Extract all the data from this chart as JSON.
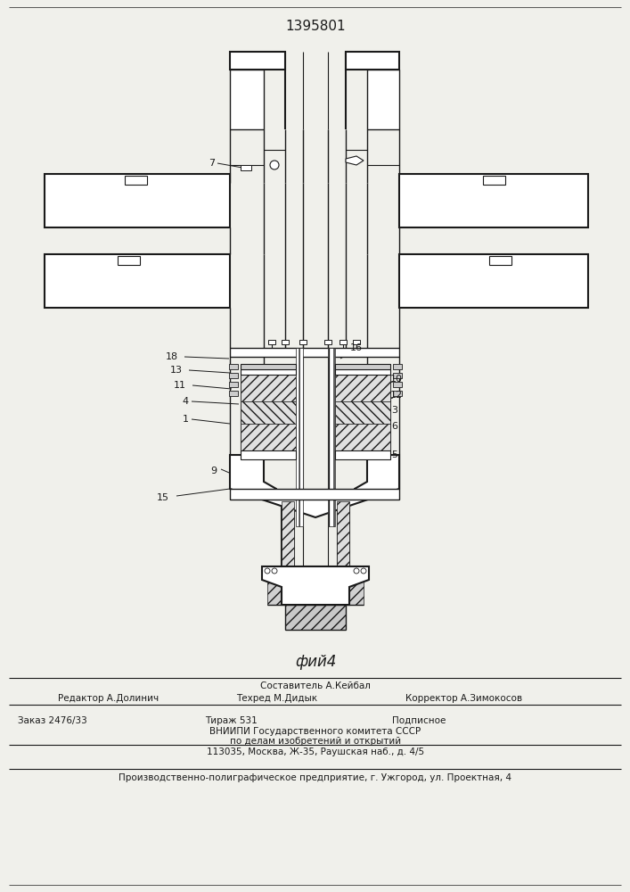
{
  "patent_number": "1395801",
  "fig_label": "фий4",
  "background_color": "#f0f0eb",
  "line_color": "#1a1a1a",
  "footer_editor": "Редактор А.Долинич",
  "footer_tech": "Техред М.Дидык",
  "footer_corrector": "Корректор А.Зимокосов",
  "footer_compiler": "Составитель А.Кейбал",
  "footer_order": "Заказ 2476/33",
  "footer_tirazh": "Тираж 531",
  "footer_podp": "Подписное",
  "footer_vniip1": "ВНИИПИ Государственного комитета СССР",
  "footer_vniip2": "по делам изобретений и открытий",
  "footer_addr": "113035, Москва, Ж-35, Раушская наб., д. 4/5",
  "footer_prod": "Производственно-полиграфическое предприятие, г. Ужгород, ул. Проектная, 4"
}
